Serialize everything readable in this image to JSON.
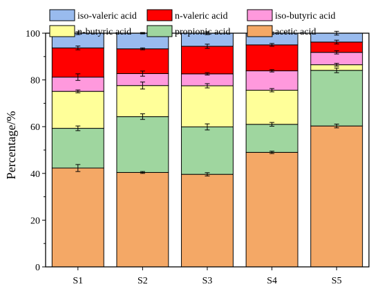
{
  "chart_data": {
    "type": "bar",
    "stacked": true,
    "categories": [
      "S1",
      "S2",
      "S3",
      "S4",
      "S5"
    ],
    "ylabel": "Percentage/%",
    "xlabel": "",
    "ylim": [
      0,
      100
    ],
    "yticks": [
      "0",
      "20",
      "40",
      "60",
      "80",
      "100"
    ],
    "legend_position": "top",
    "series": [
      {
        "name": "acetic acid",
        "color": "#f4a866",
        "values": [
          42.3,
          40.4,
          39.6,
          49.0,
          60.3
        ],
        "errors": [
          1.5,
          0.4,
          0.7,
          0.5,
          0.8
        ]
      },
      {
        "name": "propionic acid",
        "color": "#9fd69f",
        "values": [
          17.0,
          23.9,
          20.3,
          12.0,
          23.8
        ],
        "errors": [
          1.0,
          1.2,
          1.3,
          0.8,
          1.0
        ]
      },
      {
        "name": "n-butyric acid",
        "color": "#ffff99",
        "values": [
          15.8,
          13.3,
          17.6,
          14.6,
          2.4
        ],
        "errors": [
          0.6,
          1.5,
          0.9,
          0.7,
          0.6
        ]
      },
      {
        "name": "iso-butyric acid",
        "color": "#ff99dd",
        "values": [
          6.1,
          5.1,
          5.1,
          8.3,
          5.3
        ],
        "errors": [
          1.4,
          1.1,
          0.5,
          0.5,
          0.7
        ]
      },
      {
        "name": "n-valeric acid",
        "color": "#ff0000",
        "values": [
          12.5,
          10.6,
          11.8,
          11.1,
          4.4
        ],
        "errors": [
          0.8,
          0.4,
          0.9,
          0.6,
          0.8
        ]
      },
      {
        "name": "iso-valeric acid",
        "color": "#99bbee",
        "values": [
          6.3,
          6.7,
          5.6,
          5.0,
          3.8
        ],
        "errors": [
          0.6,
          0.3,
          0.6,
          0.5,
          0.8
        ]
      }
    ],
    "legend_order": [
      "iso-valeric acid",
      "n-valeric acid",
      "iso-butyric acid",
      "n-butyric acid",
      "propionic acid",
      "acetic acid"
    ]
  }
}
